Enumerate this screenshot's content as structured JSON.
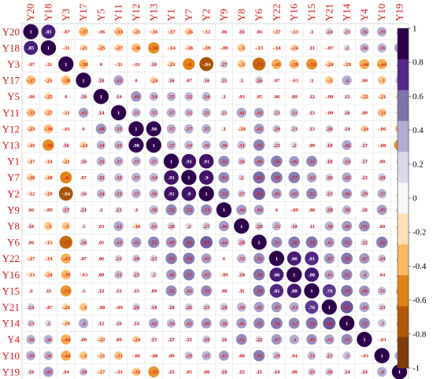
{
  "chart_data": {
    "type": "heatmap",
    "variables": [
      "Y20",
      "Y18",
      "Y3",
      "Y17",
      "Y5",
      "Y11",
      "Y12",
      "Y13",
      "Y1",
      "Y7",
      "Y2",
      "Y9",
      "Y8",
      "Y6",
      "Y22",
      "Y16",
      "Y15",
      "Y21",
      "Y14",
      "Y4",
      "Y10",
      "Y19"
    ],
    "matrix": [
      [
        1,
        0.85,
        -0.07,
        -0.37,
        -0.06,
        -0.33,
        -0.23,
        -0.16,
        -0.17,
        -0.26,
        -0.12,
        0.06,
        0.16,
        0.06,
        -0.17,
        -0.13,
        0.1,
        0.24,
        0.23,
        0.36,
        0.39,
        0.16
      ],
      [
        0.85,
        1,
        -0.11,
        -0.21,
        -0.25,
        -0.27,
        -0.36,
        -0.56,
        -0.14,
        -0.18,
        -0.19,
        -0.09,
        -0.3,
        -0.13,
        -0.14,
        -0.24,
        0.11,
        -0.07,
        0.2,
        0.36,
        0.36,
        0.45
      ],
      [
        -0.07,
        -0.11,
        1,
        -0.38,
        0,
        -0.11,
        -0.01,
        0.16,
        -0.21,
        -0.6,
        -0.84,
        0.27,
        -0.3,
        -0.72,
        -0.43,
        -0.39,
        -0.53,
        -0.24,
        -0.19,
        -0.44,
        -0.44,
        0.04
      ],
      [
        -0.37,
        -0.21,
        -0.38,
        1,
        0.18,
        0.43,
        0,
        -0.24,
        0.16,
        0.07,
        0.16,
        0.21,
        0.1,
        0.26,
        0.07,
        -0.03,
        0.1,
        -0.3,
        0.4,
        0.09,
        -0.3,
        0.28
      ],
      [
        -0.06,
        -0.25,
        0,
        0.18,
        1,
        0.14,
        0.48,
        0.34,
        0.35,
        0.32,
        0.34,
        0.1,
        0.03,
        0.05,
        0.06,
        0.09,
        0.12,
        -0.08,
        0.12,
        -0.22,
        -0.21,
        -0.17
      ],
      [
        -0.33,
        -0.27,
        -0.11,
        0.43,
        0.14,
        1,
        0.35,
        0.35,
        0.37,
        0.32,
        0.35,
        0.21,
        0.41,
        0.43,
        0.23,
        0.31,
        0.13,
        -0.09,
        0.16,
        0.09,
        -0.31,
        -0.11
      ],
      [
        -0.23,
        -0.36,
        -0.01,
        0,
        0.48,
        0.35,
        1,
        0.98,
        0.37,
        0.37,
        0.37,
        0.1,
        -0.18,
        0.45,
        0.29,
        0.23,
        0.13,
        0.26,
        0.14,
        -0.24,
        -0.06,
        -0.32
      ],
      [
        -0.16,
        -0.56,
        0.16,
        -0.24,
        0.34,
        0.35,
        0.98,
        1,
        0.37,
        0.34,
        0.36,
        0.36,
        0.31,
        0.55,
        0.23,
        0.2,
        0.09,
        0.18,
        0.42,
        0.17,
        -0.08,
        -0.53
      ],
      [
        -0.17,
        -0.14,
        -0.21,
        0.16,
        0.35,
        0.37,
        0.37,
        0.37,
        1,
        0.91,
        0.91,
        0.52,
        0.26,
        0.49,
        0.56,
        0.46,
        0.51,
        0.18,
        0.34,
        0.17,
        0.09,
        0.13
      ],
      [
        -0.26,
        -0.18,
        -0.6,
        0.07,
        0.32,
        0.32,
        0.37,
        0.34,
        0.91,
        1,
        0.9,
        0.52,
        0.2,
        0.62,
        0.58,
        0.57,
        0.42,
        0.26,
        0.42,
        0.15,
        0.29,
        0.05
      ],
      [
        -0.12,
        -0.19,
        -0.84,
        0.16,
        0.34,
        0.35,
        0.37,
        0.36,
        0.91,
        0.9,
        1,
        0.53,
        0.27,
        0.66,
        0.45,
        0.45,
        0.52,
        0.23,
        0.46,
        0.29,
        0.37,
        0.08
      ],
      [
        0.06,
        -0.09,
        0.27,
        0.21,
        0.1,
        0.21,
        0.1,
        0.36,
        0.52,
        0.52,
        0.53,
        1,
        0.46,
        0.44,
        0,
        -0.09,
        0.08,
        0.28,
        0.36,
        0.16,
        0.45,
        0.18
      ],
      [
        0.16,
        -0.3,
        -0.3,
        0.1,
        0.03,
        0.41,
        -0.18,
        0.31,
        0.26,
        0.2,
        0.27,
        0.46,
        1,
        0.28,
        0.35,
        0.18,
        0.11,
        0.36,
        0.46,
        0.51,
        0.08,
        0.12
      ],
      [
        0.06,
        -0.13,
        -0.72,
        0.26,
        0.05,
        0.43,
        0.45,
        0.55,
        0.49,
        0.62,
        0.66,
        0.44,
        0.28,
        1,
        0.51,
        0.58,
        0.59,
        0.45,
        0.52,
        0.22,
        0.56,
        0.11
      ],
      [
        -0.17,
        -0.14,
        -0.43,
        0.07,
        0.06,
        0.23,
        0.29,
        0.23,
        0.56,
        0.58,
        0.45,
        0,
        0.35,
        0.51,
        1,
        0.86,
        0.81,
        0.47,
        0.58,
        0.47,
        0.29,
        0.14
      ],
      [
        -0.13,
        -0.24,
        -0.39,
        -0.03,
        0.09,
        0.31,
        0.23,
        0.2,
        0.46,
        0.57,
        0.45,
        -0.09,
        0.18,
        0.58,
        0.86,
        1,
        0.88,
        0.41,
        0.52,
        0.4,
        0.04,
        0.08
      ],
      [
        0.1,
        0.11,
        -0.53,
        0.1,
        0.12,
        0.13,
        0.13,
        0.09,
        0.51,
        0.42,
        0.52,
        0.08,
        0.11,
        0.59,
        0.81,
        0.88,
        1,
        0.76,
        0.59,
        0.49,
        0.31,
        0.25
      ],
      [
        0.24,
        -0.07,
        -0.24,
        -0.3,
        -0.08,
        -0.09,
        0.26,
        0.18,
        0.18,
        0.26,
        0.23,
        0.28,
        0.36,
        0.45,
        0.47,
        0.41,
        0.76,
        1,
        0.68,
        0.43,
        0.23,
        0.26
      ],
      [
        0.23,
        0.2,
        -0.19,
        0.4,
        0.12,
        0.16,
        0.14,
        0.42,
        0.34,
        0.42,
        0.46,
        0.36,
        0.46,
        0.52,
        0.58,
        0.52,
        0.59,
        0.68,
        1,
        0.52,
        0.3,
        0.14
      ],
      [
        0.36,
        0.36,
        -0.44,
        0.09,
        -0.22,
        0.09,
        -0.24,
        0.17,
        0.17,
        0.15,
        0.29,
        0.16,
        0.51,
        0.22,
        0.47,
        0.4,
        0.49,
        0.43,
        0.52,
        1,
        -0.03,
        0.14
      ],
      [
        0.39,
        0.36,
        -0.44,
        -0.3,
        -0.21,
        -0.31,
        -0.06,
        -0.08,
        0.09,
        0.29,
        0.37,
        0.45,
        0.08,
        0.56,
        0.29,
        0.04,
        0.31,
        0.23,
        0.3,
        -0.03,
        1,
        0.4
      ],
      [
        0.16,
        0.45,
        0.04,
        0.28,
        -0.17,
        -0.11,
        -0.32,
        -0.53,
        0.13,
        0.05,
        0.08,
        0.18,
        0.12,
        0.11,
        0.14,
        0.08,
        0.25,
        0.26,
        0.14,
        0.14,
        0.4,
        1
      ]
    ],
    "colorbar": {
      "ticks": [
        1,
        0.8,
        0.6,
        0.4,
        0.2,
        0,
        -0.2,
        -0.4,
        -0.6,
        -0.8,
        -1
      ],
      "colors": [
        "#2d004b",
        "#542788",
        "#8073ac",
        "#b2abd2",
        "#d8daeb",
        "#f7f7f7",
        "#fee0b6",
        "#fdb863",
        "#e08214",
        "#b35806",
        "#7f3b08"
      ]
    },
    "label_color": "#d7191c",
    "grid": true
  }
}
